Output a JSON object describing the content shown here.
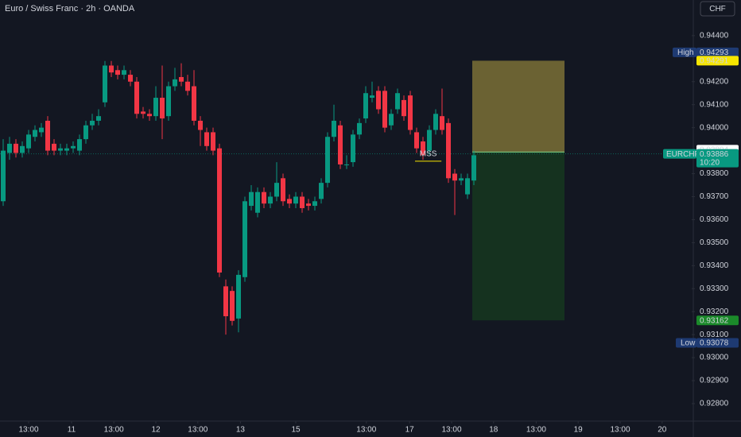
{
  "chart_data": {
    "type": "candlestick",
    "title": "Euro / Swiss Franc · 2h · OANDA",
    "currency": "CHF",
    "symbol": "EURCHF",
    "countdown": "10:20",
    "up_color": "#089981",
    "down_color": "#f23645",
    "open": [
      0.9368,
      0.9389,
      0.9393,
      0.9389,
      0.9391,
      0.9396,
      0.9398,
      0.9403,
      0.9393,
      0.939,
      0.939,
      0.9391,
      0.939,
      0.9395,
      0.9401,
      0.9403,
      0.9411,
      0.9427,
      0.9425,
      0.9423,
      0.9423,
      0.942,
      0.9407,
      0.9406,
      0.9405,
      0.9413,
      0.9405,
      0.9418,
      0.9422,
      0.942,
      0.9418,
      0.9403,
      0.9398,
      0.9398,
      0.9391,
      0.9331,
      0.9329,
      0.9317,
      0.9335,
      0.9366,
      0.9363,
      0.9372,
      0.9367,
      0.937,
      0.9378,
      0.9369,
      0.9367,
      0.937,
      0.9367,
      0.9366,
      0.9369,
      0.9376,
      0.9396,
      0.9401,
      0.9384,
      0.9385,
      0.9397,
      0.9404,
      0.9413,
      0.9416,
      0.9416,
      0.9401,
      0.9408,
      0.9412,
      0.9414,
      0.9398,
      0.9394,
      0.939,
      0.9399,
      0.9405,
      0.9402,
      0.938,
      0.9377,
      0.9371,
      0.9377
    ],
    "high": [
      0.9395,
      0.9396,
      0.9395,
      0.9394,
      0.9399,
      0.9401,
      0.9402,
      0.9405,
      0.9395,
      0.9393,
      0.9393,
      0.9394,
      0.9397,
      0.9403,
      0.9406,
      0.9408,
      0.9429,
      0.9429,
      0.9427,
      0.9427,
      0.9425,
      0.9422,
      0.9409,
      0.9408,
      0.9418,
      0.9427,
      0.942,
      0.9426,
      0.9428,
      0.9423,
      0.9425,
      0.9405,
      0.94,
      0.94,
      0.9393,
      0.9334,
      0.9331,
      0.9338,
      0.937,
      0.9375,
      0.9374,
      0.9374,
      0.9372,
      0.9385,
      0.938,
      0.9371,
      0.9372,
      0.9372,
      0.9369,
      0.937,
      0.9378,
      0.9398,
      0.941,
      0.9403,
      0.9388,
      0.9399,
      0.9404,
      0.9418,
      0.942,
      0.9418,
      0.9418,
      0.9408,
      0.9417,
      0.9414,
      0.9416,
      0.94,
      0.9396,
      0.9401,
      0.9408,
      0.9417,
      0.9404,
      0.9382,
      0.938,
      0.938,
      0.939
    ],
    "low": [
      0.9366,
      0.9386,
      0.9387,
      0.9387,
      0.9389,
      0.9394,
      0.9396,
      0.9388,
      0.9388,
      0.9388,
      0.9388,
      0.9389,
      0.9388,
      0.9393,
      0.9399,
      0.9401,
      0.9409,
      0.9422,
      0.9421,
      0.9421,
      0.9418,
      0.9404,
      0.9404,
      0.9403,
      0.9403,
      0.9395,
      0.9403,
      0.9416,
      0.9418,
      0.9414,
      0.9401,
      0.9392,
      0.939,
      0.9388,
      0.9335,
      0.931,
      0.9314,
      0.9311,
      0.9333,
      0.9364,
      0.9361,
      0.9365,
      0.9365,
      0.9368,
      0.9366,
      0.9365,
      0.9365,
      0.9363,
      0.9364,
      0.9364,
      0.9367,
      0.9374,
      0.9394,
      0.9382,
      0.9382,
      0.9383,
      0.9395,
      0.9402,
      0.9411,
      0.9406,
      0.9398,
      0.9399,
      0.9406,
      0.9403,
      0.9397,
      0.9389,
      0.9386,
      0.9388,
      0.9397,
      0.9397,
      0.9376,
      0.9362,
      0.9375,
      0.9369,
      0.9375
    ],
    "close": [
      0.939,
      0.9393,
      0.9389,
      0.9392,
      0.9397,
      0.9399,
      0.94,
      0.939,
      0.939,
      0.9391,
      0.9391,
      0.9392,
      0.9395,
      0.9401,
      0.9403,
      0.9405,
      0.9427,
      0.9424,
      0.9423,
      0.9425,
      0.942,
      0.9406,
      0.9406,
      0.9405,
      0.9413,
      0.9404,
      0.9418,
      0.9421,
      0.942,
      0.9416,
      0.9403,
      0.9399,
      0.9392,
      0.939,
      0.9337,
      0.9318,
      0.9316,
      0.9336,
      0.9368,
      0.9372,
      0.9372,
      0.9367,
      0.937,
      0.9376,
      0.9368,
      0.9367,
      0.937,
      0.9365,
      0.9366,
      0.9368,
      0.9376,
      0.9396,
      0.9403,
      0.9384,
      0.9384,
      0.9397,
      0.9402,
      0.9415,
      0.9414,
      0.9408,
      0.94,
      0.9406,
      0.9415,
      0.9405,
      0.9399,
      0.9391,
      0.9388,
      0.9399,
      0.9406,
      0.9399,
      0.9378,
      0.9377,
      0.9378,
      0.9378,
      0.9388
    ],
    "xlim": [
      -0.5,
      108.25
    ],
    "xticks": [
      {
        "value": 4,
        "label": "13:00"
      },
      {
        "value": 10.75,
        "label": "11"
      },
      {
        "value": 17.4,
        "label": "13:00"
      },
      {
        "value": 24,
        "label": "12"
      },
      {
        "value": 30.6,
        "label": "13:00"
      },
      {
        "value": 37.3,
        "label": "13"
      },
      {
        "value": 46,
        "label": "15"
      },
      {
        "value": 57.1,
        "label": "13:00"
      },
      {
        "value": 63.9,
        "label": "17"
      },
      {
        "value": 70.5,
        "label": "13:00"
      },
      {
        "value": 77.1,
        "label": "18"
      },
      {
        "value": 83.8,
        "label": "13:00"
      },
      {
        "value": 90.4,
        "label": "19"
      },
      {
        "value": 97,
        "label": "13:00"
      },
      {
        "value": 103.6,
        "label": "20"
      }
    ],
    "ylim": [
      0.92724,
      0.94555
    ],
    "yticks": [
      {
        "value": 0.944,
        "label": "0.94400"
      },
      {
        "value": 0.942,
        "label": "0.94200"
      },
      {
        "value": 0.941,
        "label": "0.94100"
      },
      {
        "value": 0.94,
        "label": "0.94000"
      },
      {
        "value": 0.938,
        "label": "0.93800"
      },
      {
        "value": 0.937,
        "label": "0.93700"
      },
      {
        "value": 0.936,
        "label": "0.93600"
      },
      {
        "value": 0.935,
        "label": "0.93500"
      },
      {
        "value": 0.934,
        "label": "0.93400"
      },
      {
        "value": 0.933,
        "label": "0.93300"
      },
      {
        "value": 0.932,
        "label": "0.93200"
      },
      {
        "value": 0.931,
        "label": "0.93100"
      },
      {
        "value": 0.93,
        "label": "0.93000"
      },
      {
        "value": 0.929,
        "label": "0.92900"
      },
      {
        "value": 0.928,
        "label": "0.92800"
      }
    ],
    "high_label": {
      "text": "High",
      "value": 0.94293
    },
    "low_label": {
      "text": "Low",
      "value": 0.93078
    },
    "last_price": 0.93886,
    "position": {
      "target": 0.94291,
      "entry": 0.93894,
      "stop": 0.93162,
      "start": 73.75,
      "end": 88.25
    },
    "annotation": {
      "text": "MSS",
      "value": 0.93854,
      "start": 64.75,
      "end": 68.9
    }
  }
}
